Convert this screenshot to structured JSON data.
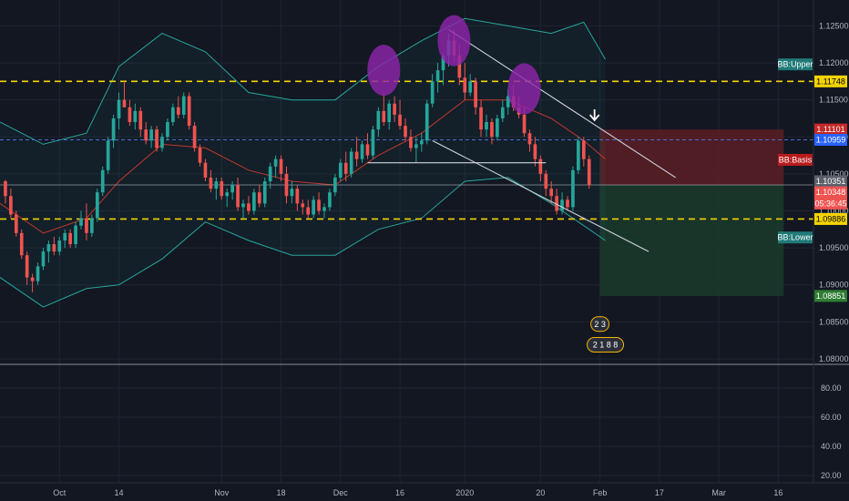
{
  "chart_data": {
    "type": "candlestick",
    "colors": {
      "background": "#131722",
      "grid": "#1f2433",
      "up": "#26a69a",
      "down": "#ef5350",
      "bb_band": "#26a69a",
      "bb_basis": "#c0392b",
      "support_resistance": "#f5d400",
      "current_level": "#4a6fd4",
      "trendline": "#d1d4dc",
      "highlight": "#8e24aa",
      "short_stop_zone": "#5c1f24",
      "short_target_zone": "#1b3b2c"
    },
    "price_axis": {
      "ylim": [
        1.0795,
        1.1285
      ],
      "ticks": [
        "1.12500",
        "1.12000",
        "1.11500",
        "1.11000",
        "1.10500",
        "1.10000",
        "1.09500",
        "1.09000",
        "1.08500",
        "1.08000"
      ]
    },
    "oscillator_axis": {
      "ylim": [
        15,
        95
      ],
      "ticks": [
        "80.00",
        "60.00",
        "40.00",
        "20.00"
      ]
    },
    "x_axis": {
      "ticks": [
        {
          "label": "Oct",
          "day": 11
        },
        {
          "label": "14",
          "day": 22
        },
        {
          "label": "Nov",
          "day": 41
        },
        {
          "label": "18",
          "day": 52
        },
        {
          "label": "Dec",
          "day": 63
        },
        {
          "label": "16",
          "day": 74
        },
        {
          "label": "2020",
          "day": 86
        },
        {
          "label": "20",
          "day": 100
        },
        {
          "label": "Feb",
          "day": 111
        },
        {
          "label": "17",
          "day": 122
        },
        {
          "label": "Mar",
          "day": 133
        },
        {
          "label": "16",
          "day": 144
        }
      ],
      "last_day": 150
    },
    "horizontal_levels": [
      {
        "price": 1.1175,
        "style": "dashed",
        "color_key": "support_resistance"
      },
      {
        "price": 1.0989,
        "style": "dashed",
        "color_key": "support_resistance"
      },
      {
        "price": 1.1096,
        "style": "dashed",
        "color_key": "current_level"
      },
      {
        "price": 1.1035,
        "style": "solid",
        "color_key": "trendline"
      }
    ],
    "trendlines": [
      {
        "from": [
          83,
          1.1245
        ],
        "to": [
          125,
          1.1045
        ]
      },
      {
        "from": [
          80,
          1.1095
        ],
        "to": [
          120,
          1.0945
        ]
      },
      {
        "from": [
          68,
          1.1065
        ],
        "to": [
          101,
          1.1065
        ]
      }
    ],
    "highlight_circles": [
      {
        "day": 71,
        "price": 1.119
      },
      {
        "day": 84,
        "price": 1.123
      },
      {
        "day": 97,
        "price": 1.1165
      }
    ],
    "position_zones": [
      {
        "kind": "stop",
        "from_day": 111,
        "to_day": 145,
        "top": 1.111,
        "bottom": 1.1035
      },
      {
        "kind": "target",
        "from_day": 111,
        "to_day": 145,
        "top": 1.1035,
        "bottom": 1.0885
      }
    ],
    "entry_arrow": {
      "day": 110,
      "price": 1.112
    },
    "candles": [
      [
        1.104,
        1.1042,
        1.101,
        1.102
      ],
      [
        1.102,
        1.103,
        1.099,
        1.0995
      ],
      [
        1.0995,
        1.1,
        1.0965,
        1.097
      ],
      [
        1.097,
        1.0975,
        1.0935,
        1.094
      ],
      [
        1.094,
        1.0945,
        1.09,
        1.091
      ],
      [
        1.091,
        1.0915,
        1.089,
        1.0905
      ],
      [
        1.0905,
        1.093,
        1.09,
        1.0925
      ],
      [
        1.0925,
        1.095,
        1.092,
        1.0945
      ],
      [
        1.0945,
        1.096,
        1.093,
        1.0955
      ],
      [
        1.0955,
        1.0965,
        1.094,
        1.0945
      ],
      [
        1.0945,
        1.0965,
        1.094,
        1.096
      ],
      [
        1.096,
        1.0975,
        1.095,
        1.097
      ],
      [
        1.097,
        1.0975,
        1.095,
        1.0955
      ],
      [
        1.0955,
        1.0985,
        1.095,
        1.098
      ],
      [
        1.098,
        1.1,
        1.0975,
        1.099
      ],
      [
        1.099,
        1.101,
        1.096,
        1.097
      ],
      [
        1.097,
        1.0995,
        1.0965,
        1.099
      ],
      [
        1.099,
        1.103,
        1.0985,
        1.1025
      ],
      [
        1.1025,
        1.106,
        1.102,
        1.1055
      ],
      [
        1.1055,
        1.11,
        1.105,
        1.1095
      ],
      [
        1.1095,
        1.113,
        1.1085,
        1.1125
      ],
      [
        1.1125,
        1.116,
        1.111,
        1.115
      ],
      [
        1.115,
        1.1175,
        1.114,
        1.114
      ],
      [
        1.114,
        1.115,
        1.1115,
        1.112
      ],
      [
        1.112,
        1.1145,
        1.111,
        1.1135
      ],
      [
        1.1135,
        1.114,
        1.11,
        1.111
      ],
      [
        1.111,
        1.112,
        1.109,
        1.1095
      ],
      [
        1.1095,
        1.1115,
        1.1085,
        1.111
      ],
      [
        1.111,
        1.1115,
        1.108,
        1.1085
      ],
      [
        1.1085,
        1.1105,
        1.108,
        1.11
      ],
      [
        1.11,
        1.1125,
        1.1095,
        1.112
      ],
      [
        1.112,
        1.1145,
        1.1115,
        1.114
      ],
      [
        1.114,
        1.1155,
        1.1125,
        1.113
      ],
      [
        1.113,
        1.116,
        1.1125,
        1.1155
      ],
      [
        1.1155,
        1.116,
        1.111,
        1.1115
      ],
      [
        1.1115,
        1.112,
        1.108,
        1.1085
      ],
      [
        1.1085,
        1.109,
        1.106,
        1.1065
      ],
      [
        1.1065,
        1.107,
        1.104,
        1.1045
      ],
      [
        1.1045,
        1.1055,
        1.1025,
        1.103
      ],
      [
        1.103,
        1.1045,
        1.1015,
        1.104
      ],
      [
        1.104,
        1.1045,
        1.1015,
        1.102
      ],
      [
        1.102,
        1.103,
        1.1005,
        1.1025
      ],
      [
        1.1025,
        1.104,
        1.1015,
        1.1035
      ],
      [
        1.1035,
        1.1045,
        1.1,
        1.1005
      ],
      [
        1.1005,
        1.1015,
        1.099,
        1.101
      ],
      [
        1.101,
        1.102,
        1.0995,
        1.1
      ],
      [
        1.1,
        1.103,
        1.0995,
        1.1025
      ],
      [
        1.1025,
        1.1035,
        1.1005,
        1.101
      ],
      [
        1.101,
        1.1045,
        1.1005,
        1.104
      ],
      [
        1.104,
        1.1065,
        1.103,
        1.106
      ],
      [
        1.106,
        1.1075,
        1.1045,
        1.107
      ],
      [
        1.107,
        1.1075,
        1.104,
        1.105
      ],
      [
        1.105,
        1.106,
        1.101,
        1.102
      ],
      [
        1.102,
        1.104,
        1.101,
        1.103
      ],
      [
        1.103,
        1.1035,
        1.1,
        1.101
      ],
      [
        1.101,
        1.1015,
        1.0995,
        1.1005
      ],
      [
        1.1005,
        1.1015,
        1.099,
        1.0995
      ],
      [
        1.0995,
        1.102,
        1.099,
        1.1015
      ],
      [
        1.1015,
        1.1025,
        1.0995,
        1.1
      ],
      [
        1.1,
        1.101,
        1.099,
        1.1005
      ],
      [
        1.1005,
        1.103,
        1.1,
        1.1025
      ],
      [
        1.1025,
        1.105,
        1.102,
        1.1045
      ],
      [
        1.1045,
        1.107,
        1.104,
        1.1065
      ],
      [
        1.1065,
        1.108,
        1.104,
        1.105
      ],
      [
        1.105,
        1.1085,
        1.1045,
        1.108
      ],
      [
        1.108,
        1.11,
        1.106,
        1.107
      ],
      [
        1.107,
        1.1095,
        1.1065,
        1.109
      ],
      [
        1.109,
        1.1105,
        1.107,
        1.1075
      ],
      [
        1.1075,
        1.1115,
        1.107,
        1.111
      ],
      [
        1.111,
        1.114,
        1.11,
        1.1135
      ],
      [
        1.1135,
        1.116,
        1.1115,
        1.112
      ],
      [
        1.112,
        1.115,
        1.111,
        1.1145
      ],
      [
        1.1145,
        1.1155,
        1.112,
        1.113
      ],
      [
        1.113,
        1.115,
        1.111,
        1.1115
      ],
      [
        1.1115,
        1.1125,
        1.1095,
        1.11
      ],
      [
        1.11,
        1.111,
        1.108,
        1.1085
      ],
      [
        1.1085,
        1.11,
        1.1065,
        1.109
      ],
      [
        1.109,
        1.1105,
        1.108,
        1.1095
      ],
      [
        1.1095,
        1.115,
        1.109,
        1.1145
      ],
      [
        1.1145,
        1.1185,
        1.114,
        1.1175
      ],
      [
        1.1175,
        1.12,
        1.116,
        1.119
      ],
      [
        1.119,
        1.1215,
        1.117,
        1.121
      ],
      [
        1.121,
        1.124,
        1.1195,
        1.123
      ],
      [
        1.123,
        1.1245,
        1.12,
        1.121
      ],
      [
        1.121,
        1.1225,
        1.117,
        1.118
      ],
      [
        1.118,
        1.12,
        1.115,
        1.116
      ],
      [
        1.116,
        1.1185,
        1.1155,
        1.1175
      ],
      [
        1.1175,
        1.118,
        1.113,
        1.114
      ],
      [
        1.114,
        1.115,
        1.11,
        1.111
      ],
      [
        1.111,
        1.113,
        1.11,
        1.112
      ],
      [
        1.112,
        1.1125,
        1.109,
        1.11
      ],
      [
        1.11,
        1.113,
        1.1095,
        1.1125
      ],
      [
        1.1125,
        1.115,
        1.112,
        1.114
      ],
      [
        1.114,
        1.1165,
        1.113,
        1.1155
      ],
      [
        1.1155,
        1.117,
        1.1135,
        1.114
      ],
      [
        1.114,
        1.1155,
        1.1125,
        1.113
      ],
      [
        1.113,
        1.114,
        1.11,
        1.1105
      ],
      [
        1.1105,
        1.111,
        1.108,
        1.109
      ],
      [
        1.109,
        1.11,
        1.106,
        1.107
      ],
      [
        1.107,
        1.1075,
        1.104,
        1.105
      ],
      [
        1.105,
        1.1055,
        1.102,
        1.103
      ],
      [
        1.103,
        1.104,
        1.101,
        1.102
      ],
      [
        1.102,
        1.103,
        1.0995,
        1.1
      ],
      [
        1.1,
        1.1025,
        1.0995,
        1.1015
      ],
      [
        1.1015,
        1.102,
        1.1,
        1.1005
      ],
      [
        1.1005,
        1.106,
        1.1,
        1.1055
      ],
      [
        1.1055,
        1.11,
        1.105,
        1.1095
      ],
      [
        1.1095,
        1.11,
        1.106,
        1.107
      ],
      [
        1.107,
        1.1075,
        1.103,
        1.1035
      ]
    ],
    "bollinger": {
      "upper_pts": [
        [
          0,
          1.112
        ],
        [
          8,
          1.109
        ],
        [
          16,
          1.1105
        ],
        [
          22,
          1.1195
        ],
        [
          30,
          1.124
        ],
        [
          38,
          1.1215
        ],
        [
          46,
          1.116
        ],
        [
          54,
          1.115
        ],
        [
          62,
          1.115
        ],
        [
          70,
          1.1195
        ],
        [
          78,
          1.123
        ],
        [
          86,
          1.126
        ],
        [
          94,
          1.125
        ],
        [
          102,
          1.124
        ],
        [
          108,
          1.1255
        ],
        [
          112,
          1.1205
        ]
      ],
      "basis_pts": [
        [
          0,
          1.101
        ],
        [
          8,
          1.097
        ],
        [
          16,
          1.099
        ],
        [
          22,
          1.104
        ],
        [
          30,
          1.109
        ],
        [
          38,
          1.1085
        ],
        [
          46,
          1.1055
        ],
        [
          54,
          1.104
        ],
        [
          62,
          1.1035
        ],
        [
          70,
          1.1075
        ],
        [
          78,
          1.1105
        ],
        [
          86,
          1.115
        ],
        [
          94,
          1.115
        ],
        [
          102,
          1.1125
        ],
        [
          108,
          1.1095
        ],
        [
          112,
          1.107
        ]
      ],
      "lower_pts": [
        [
          0,
          1.091
        ],
        [
          8,
          1.087
        ],
        [
          16,
          1.0895
        ],
        [
          22,
          1.09
        ],
        [
          30,
          1.0935
        ],
        [
          38,
          1.0985
        ],
        [
          46,
          1.096
        ],
        [
          54,
          1.094
        ],
        [
          62,
          1.094
        ],
        [
          70,
          1.0975
        ],
        [
          78,
          1.099
        ],
        [
          86,
          1.104
        ],
        [
          94,
          1.1045
        ],
        [
          102,
          1.101
        ],
        [
          108,
          1.098
        ],
        [
          112,
          1.096
        ]
      ]
    },
    "axis_tags": [
      {
        "label": "BB:Upper",
        "price": 1.1198,
        "bg": "#1f7a78",
        "fg": "#ffffff",
        "kind": "name"
      },
      {
        "label": "1.11748",
        "price": 1.1175,
        "bg": "#f5d400",
        "fg": "#000000",
        "kind": "value"
      },
      {
        "label": "1.11101",
        "price": 1.111,
        "bg": "#c62828",
        "fg": "#ffffff",
        "kind": "value"
      },
      {
        "label": "1.10959",
        "price": 1.1096,
        "bg": "#2962ff",
        "fg": "#ffffff",
        "kind": "value"
      },
      {
        "label": "BB:Basis",
        "price": 1.1069,
        "bg": "#b71c1c",
        "fg": "#ffffff",
        "kind": "name"
      },
      {
        "label": "1.10351",
        "price": 1.104,
        "bg": "#5d606b",
        "fg": "#ffffff",
        "kind": "value"
      },
      {
        "label": "1.10348",
        "price": 1.1025,
        "bg": "#ef5350",
        "fg": "#ffffff",
        "kind": "value"
      },
      {
        "label": "05:36:45",
        "price": 1.101,
        "bg": "#ef5350",
        "fg": "#ffffff",
        "kind": "value"
      },
      {
        "label": "1.09886",
        "price": 1.0989,
        "bg": "#f5d400",
        "fg": "#000000",
        "kind": "value"
      },
      {
        "label": "BB:Lower",
        "price": 1.0964,
        "bg": "#1f7a78",
        "fg": "#ffffff",
        "kind": "name"
      },
      {
        "label": "1.08851",
        "price": 1.0885,
        "bg": "#2e7d32",
        "fg": "#ffffff",
        "kind": "value"
      }
    ],
    "event_badges": [
      {
        "label": "2 3",
        "day": 111,
        "price": 1.0847
      },
      {
        "label": "2 1 8 8",
        "day": 112,
        "price": 1.0819
      }
    ]
  }
}
